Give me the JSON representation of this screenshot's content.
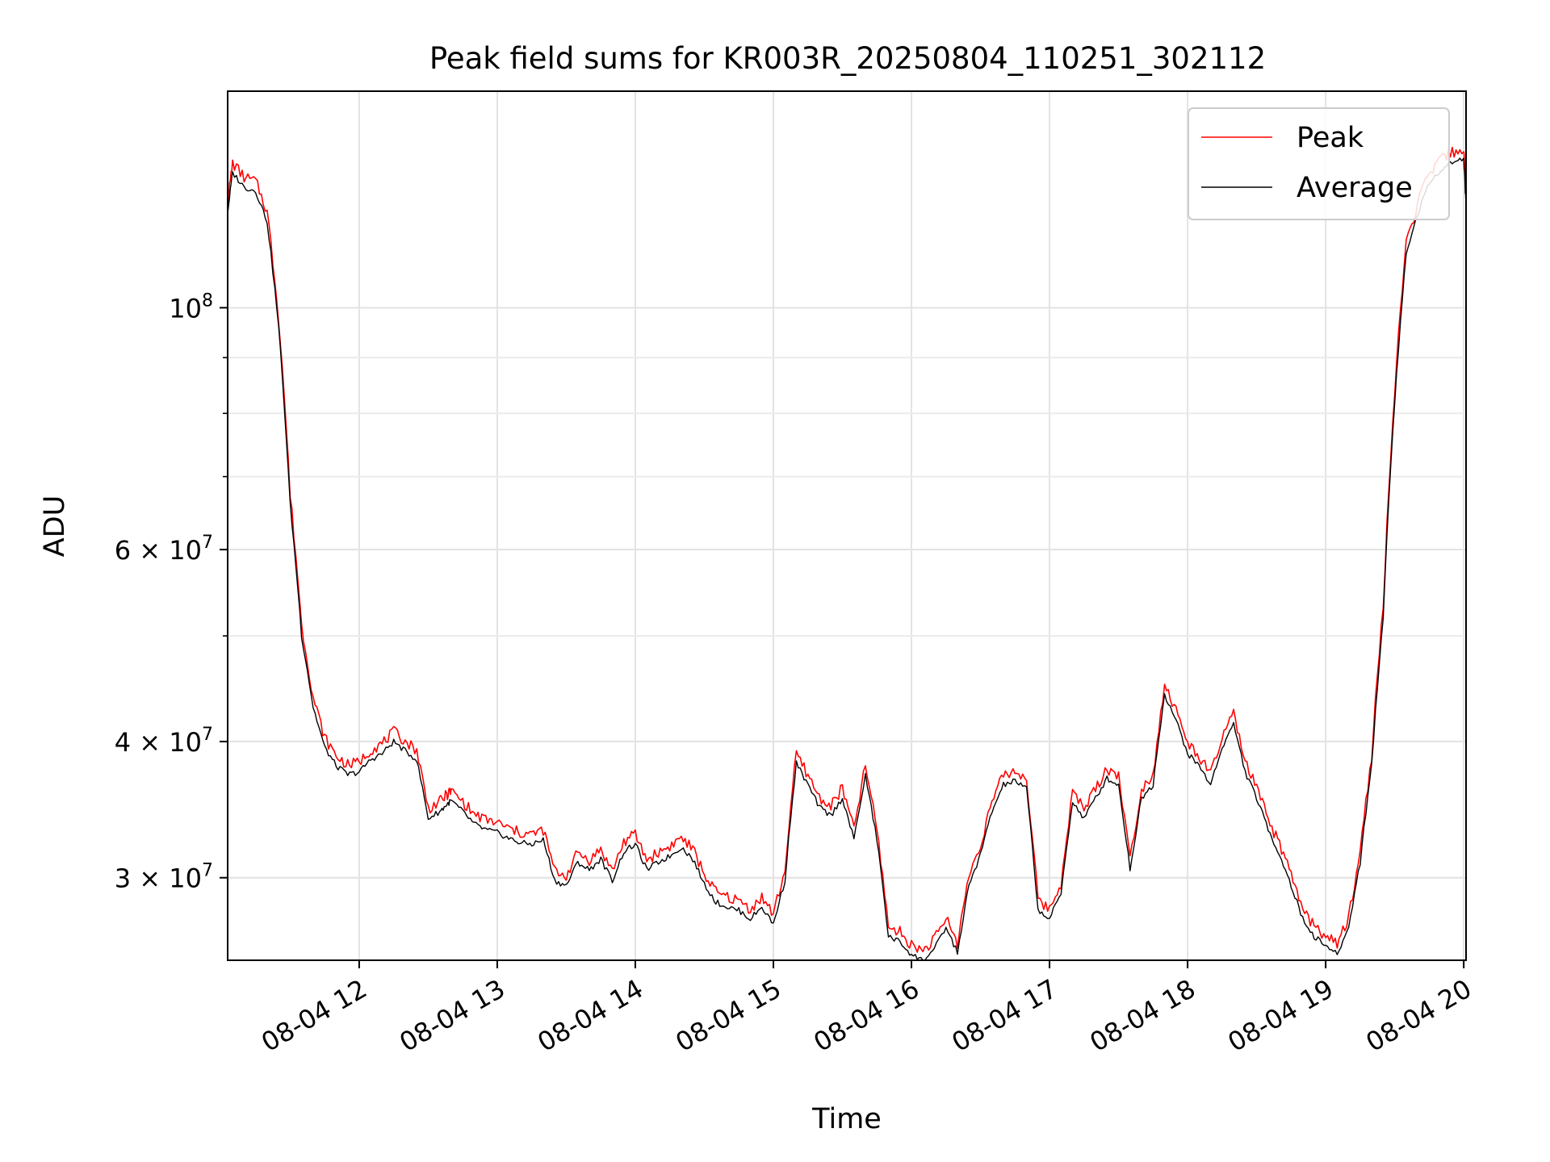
{
  "chart_data": {
    "type": "line",
    "title": "Peak field sums for KR003R_20250804_110251_302112",
    "xlabel": "Time",
    "ylabel": "ADU",
    "y_scale": "log",
    "x_axis_type": "datetime",
    "xlim": [
      "2025-08-04 11:02:51",
      "2025-08-04 20:01:00"
    ],
    "ylim": [
      25200000,
      158000000
    ],
    "grid": true,
    "legend_position": "top-right",
    "x_tick_labels": [
      "08-04 12",
      "08-04 13",
      "08-04 14",
      "08-04 15",
      "08-04 16",
      "08-04 17",
      "08-04 18",
      "08-04 19",
      "08-04 20"
    ],
    "y_tick_labels": [
      {
        "value": 30000000,
        "mantissa": "3",
        "exponent": "7"
      },
      {
        "value": 40000000,
        "mantissa": "4",
        "exponent": "7"
      },
      {
        "value": 60000000,
        "mantissa": "6",
        "exponent": "7"
      },
      {
        "value": 100000000,
        "mantissa": "",
        "exponent": "8"
      }
    ],
    "series": [
      {
        "name": "Peak",
        "color": "#ff0000",
        "offset_ratio": 1.015
      },
      {
        "name": "Average",
        "color": "#000000"
      }
    ],
    "x": [
      "11:03",
      "11:05",
      "11:10",
      "11:15",
      "11:20",
      "11:25",
      "11:30",
      "11:35",
      "11:40",
      "11:45",
      "11:50",
      "11:55",
      "12:00",
      "12:05",
      "12:10",
      "12:15",
      "12:20",
      "12:25",
      "12:30",
      "12:35",
      "12:38",
      "12:40",
      "12:45",
      "12:50",
      "12:55",
      "13:00",
      "13:05",
      "13:10",
      "13:15",
      "13:20",
      "13:25",
      "13:30",
      "13:35",
      "13:40",
      "13:45",
      "13:50",
      "13:55",
      "14:00",
      "14:05",
      "14:10",
      "14:15",
      "14:20",
      "14:25",
      "14:30",
      "14:35",
      "14:40",
      "14:45",
      "14:50",
      "14:55",
      "15:00",
      "15:05",
      "15:10",
      "15:15",
      "15:20",
      "15:25",
      "15:30",
      "15:35",
      "15:40",
      "15:45",
      "15:50",
      "15:55",
      "16:00",
      "16:05",
      "16:10",
      "16:15",
      "16:20",
      "16:25",
      "16:30",
      "16:35",
      "16:40",
      "16:45",
      "16:50",
      "16:55",
      "17:00",
      "17:05",
      "17:10",
      "17:15",
      "17:20",
      "17:25",
      "17:30",
      "17:35",
      "17:40",
      "17:45",
      "17:50",
      "17:55",
      "18:00",
      "18:05",
      "18:10",
      "18:15",
      "18:20",
      "18:25",
      "18:30",
      "18:35",
      "18:40",
      "18:45",
      "18:50",
      "18:55",
      "19:00",
      "19:05",
      "19:10",
      "19:15",
      "19:20",
      "19:25",
      "19:30",
      "19:35",
      "19:40",
      "19:45",
      "19:50",
      "19:55",
      "20:00",
      "20:01"
    ],
    "average": [
      123000000,
      133000000,
      129000000,
      128000000,
      120000000,
      96000000,
      66000000,
      50000000,
      43000000,
      39500000,
      38000000,
      37300000,
      37500000,
      38500000,
      39000000,
      40000000,
      39200000,
      38500000,
      34000000,
      34500000,
      35000000,
      35300000,
      34500000,
      33600000,
      33200000,
      33000000,
      32600000,
      32300000,
      32200000,
      32500000,
      29800000,
      29500000,
      31000000,
      30500000,
      31200000,
      29800000,
      31700000,
      32200000,
      30500000,
      31000000,
      31400000,
      32000000,
      31200000,
      29600000,
      28500000,
      28200000,
      28000000,
      27500000,
      28200000,
      27200000,
      29800000,
      38200000,
      36500000,
      34800000,
      34200000,
      35500000,
      32500000,
      37200000,
      32500000,
      26500000,
      26200000,
      25500000,
      25200000,
      25800000,
      27000000,
      25600000,
      29500000,
      31500000,
      34500000,
      36500000,
      36800000,
      36200000,
      28000000,
      27500000,
      29000000,
      35200000,
      34000000,
      35500000,
      37000000,
      36500000,
      30500000,
      35500000,
      36500000,
      44200000,
      41800000,
      39000000,
      38000000,
      36500000,
      39500000,
      41500000,
      37500000,
      35500000,
      33200000,
      31500000,
      29500000,
      27500000,
      26500000,
      26000000,
      25500000,
      27000000,
      31000000,
      38000000,
      52000000,
      82000000,
      112000000,
      122000000,
      130000000,
      134000000,
      136000000,
      137000000,
      124000000
    ]
  }
}
